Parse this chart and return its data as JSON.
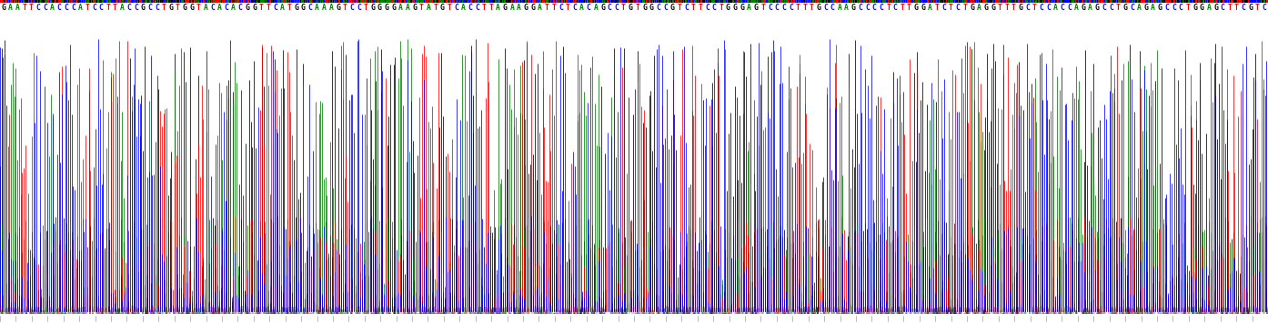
{
  "sequence": "GAATTCCACCCATCCTTACCGCCTGTGGTACACACGGTTCATGGCAAAGTCCTGGGGAAGTATGTCACCTTAGAAGGATTCTCACAGCCTGTGGCCGTCTTCCTGGGAGTCCCCTTTGCCAAGCCCCTCTTGGATCTCTGAGGTTTGCTCCACCAGAGCCTGCAGAGCCCTGGAGCTTCGTC",
  "base_colors": {
    "G": "#000000",
    "A": "#008000",
    "T": "#FF0000",
    "C": "#0000FF"
  },
  "background": "#FFFFFF",
  "figure_width": 13.94,
  "figure_height": 3.57,
  "dpi": 100,
  "n_traces": 800,
  "sequence_fontsize": 5.8,
  "line_width": 0.55
}
